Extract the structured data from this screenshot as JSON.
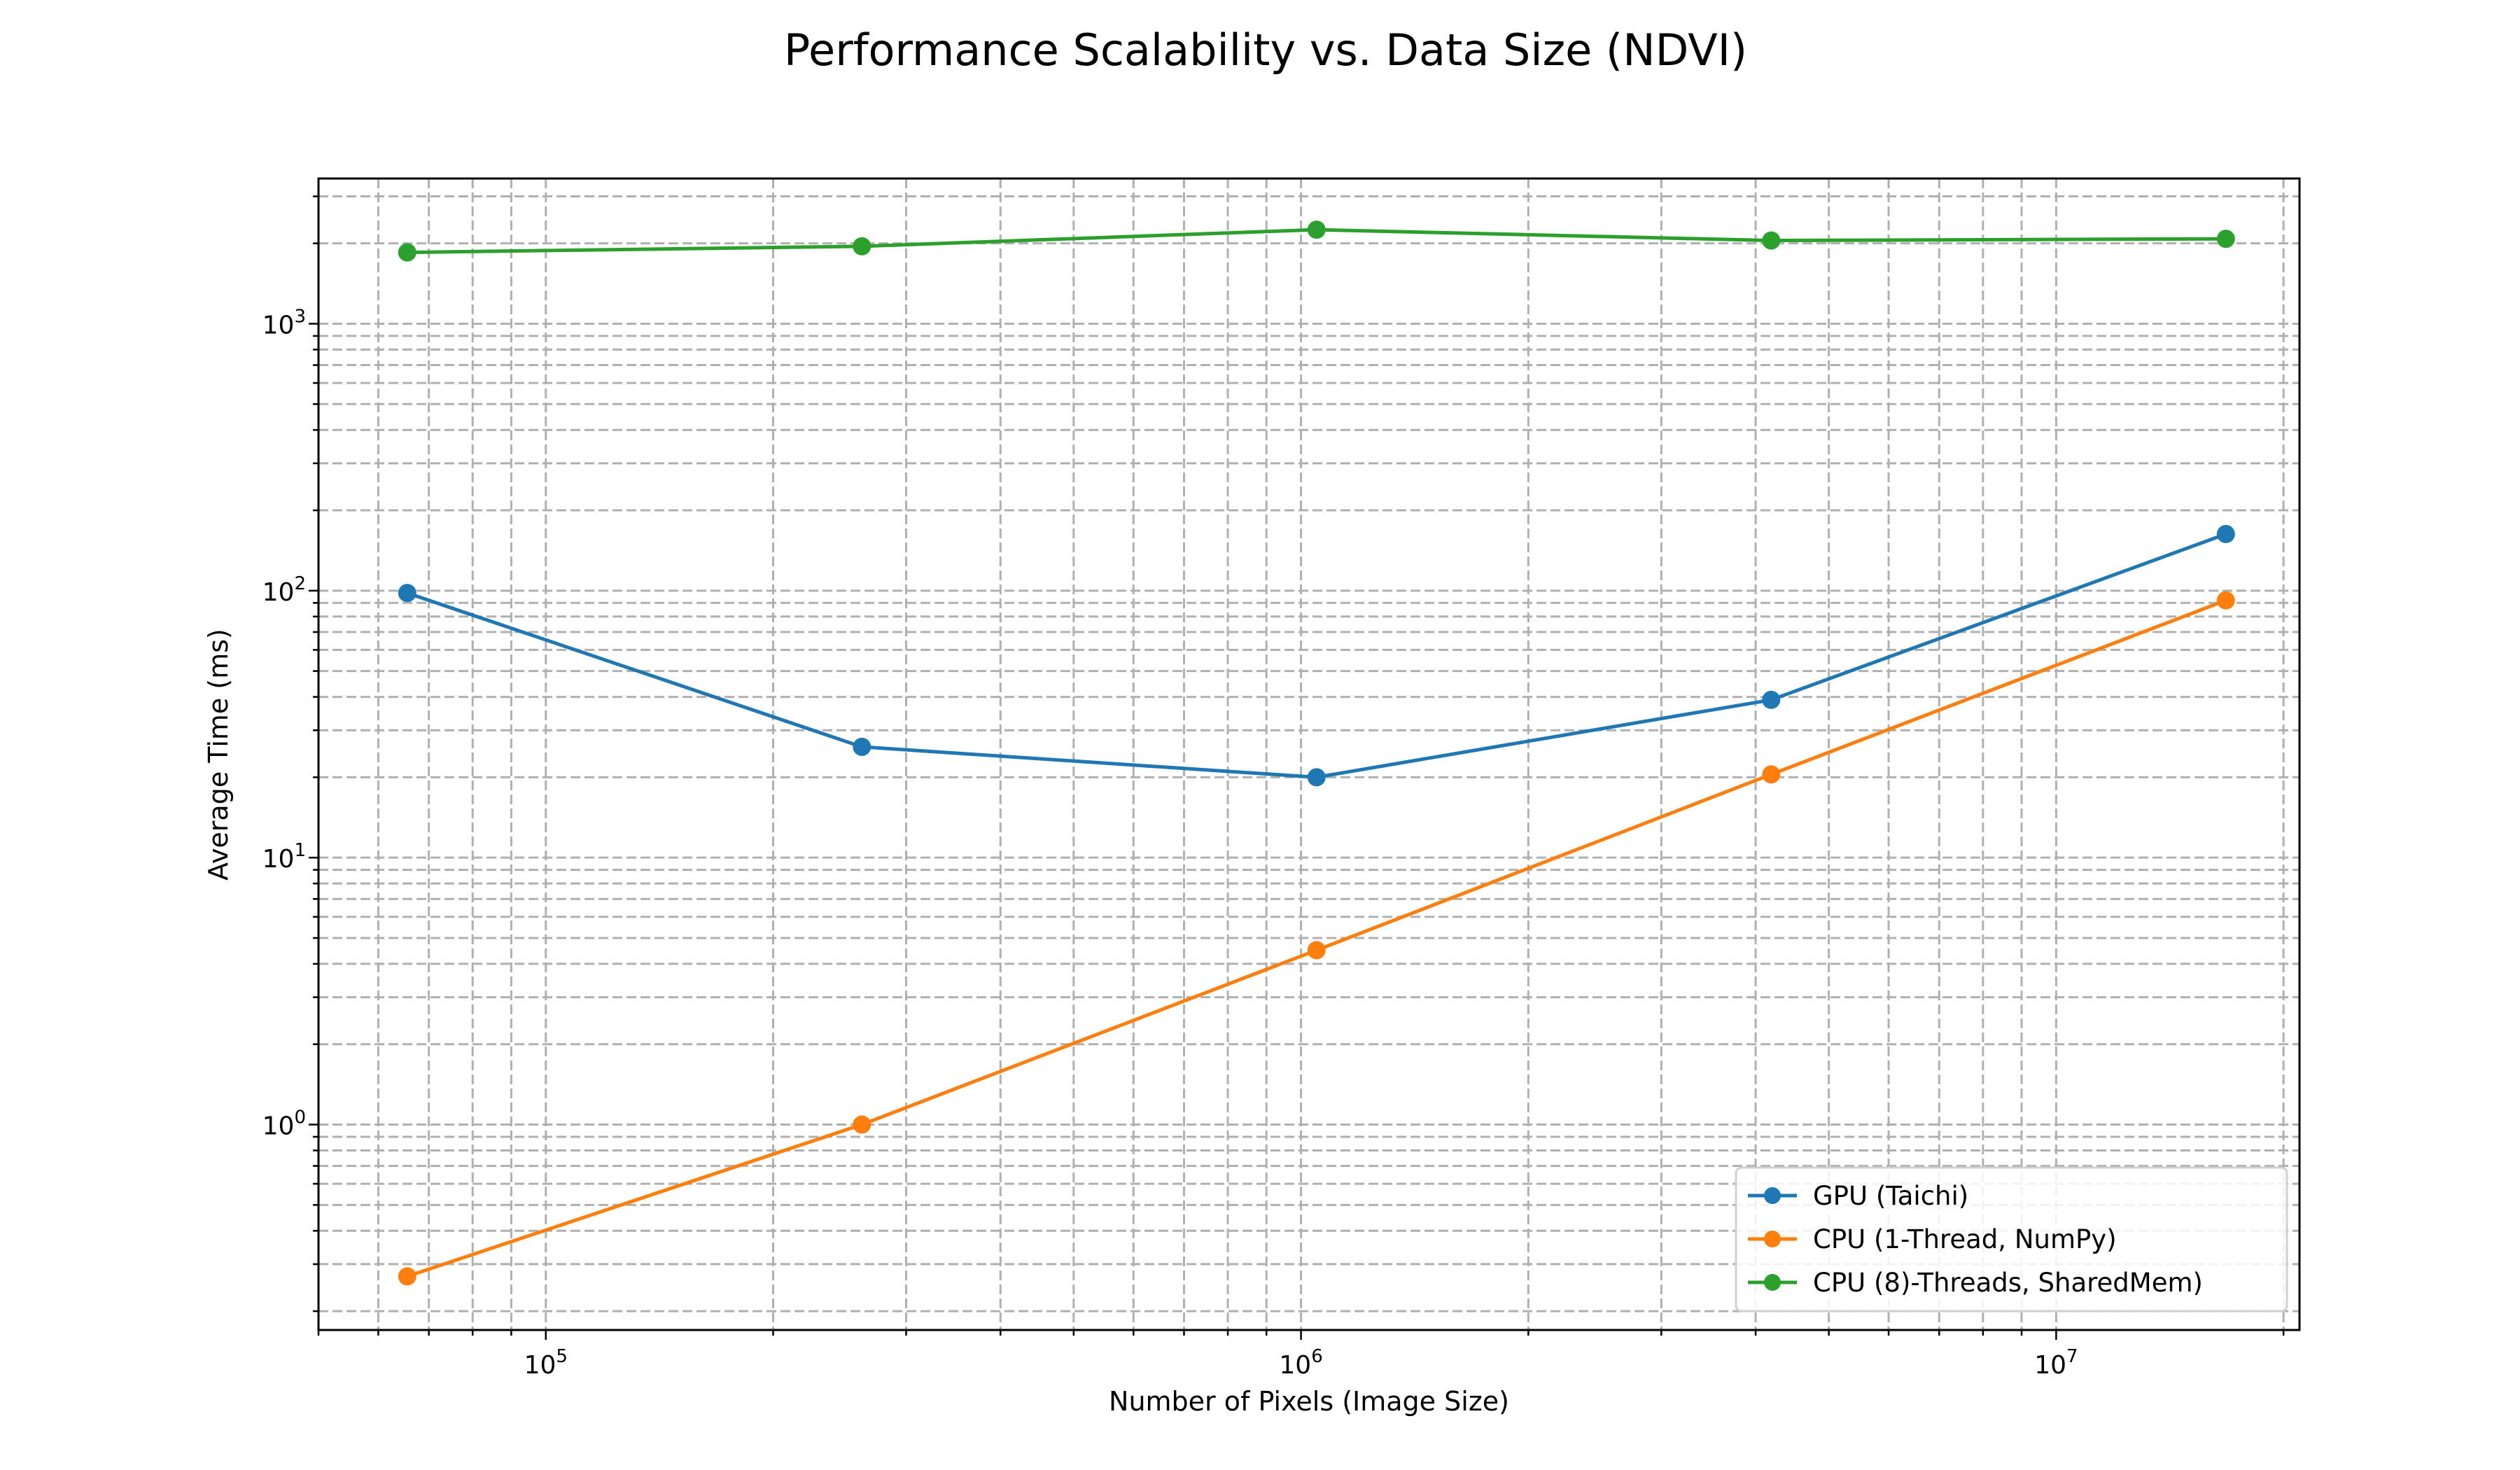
{
  "chart_data": {
    "type": "line",
    "title": "Performance Scalability vs. Data Size (NDVI)",
    "xlabel": "Number of Pixels (Image Size)",
    "ylabel": "Average Time (ms)",
    "xscale": "log",
    "yscale": "log",
    "xlim": [
      50000,
      21000000
    ],
    "ylim": [
      0.17,
      3500
    ],
    "x": [
      65536,
      262144,
      1048576,
      4194304,
      16777216
    ],
    "x_ticks": [
      {
        "value": 100000,
        "base": "10",
        "exp": "5"
      },
      {
        "value": 1000000,
        "base": "10",
        "exp": "6"
      },
      {
        "value": 10000000,
        "base": "10",
        "exp": "7"
      }
    ],
    "y_ticks": [
      {
        "value": 1,
        "base": "10",
        "exp": "0"
      },
      {
        "value": 10,
        "base": "10",
        "exp": "1"
      },
      {
        "value": 100,
        "base": "10",
        "exp": "2"
      },
      {
        "value": 1000,
        "base": "10",
        "exp": "3"
      }
    ],
    "grid": true,
    "legend_position": "lower-right",
    "series": [
      {
        "name": "GPU (Taichi)",
        "color": "#1f77b4",
        "values": [
          98,
          26,
          20,
          39,
          163
        ]
      },
      {
        "name": "CPU (1-Thread, NumPy)",
        "color": "#ff7f0e",
        "values": [
          0.27,
          1.0,
          4.5,
          20.5,
          92
        ]
      },
      {
        "name": "CPU (8)-Threads, SharedMem)",
        "color": "#2ca02c",
        "values": [
          1850,
          1950,
          2250,
          2050,
          2080
        ]
      }
    ]
  }
}
